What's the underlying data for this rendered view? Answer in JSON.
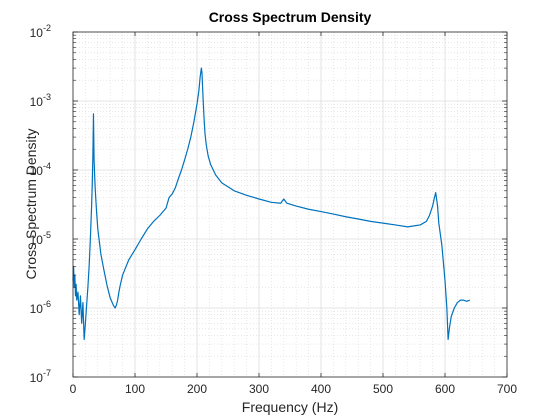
{
  "chart_data": {
    "type": "line",
    "title": "Cross Spectrum Density",
    "xlabel": "Frequency (Hz)",
    "ylabel": "Cross Spectrum Density",
    "xlim": [
      0,
      700
    ],
    "ylim": [
      1e-07,
      0.01
    ],
    "yscale": "log",
    "grid": "on (major and minor)",
    "x_ticks": [
      "0",
      "100",
      "200",
      "300",
      "400",
      "500",
      "600",
      "700"
    ],
    "y_ticks": [
      {
        "base": "10",
        "exp": "-7"
      },
      {
        "base": "10",
        "exp": "-6"
      },
      {
        "base": "10",
        "exp": "-5"
      },
      {
        "base": "10",
        "exp": "-4"
      },
      {
        "base": "10",
        "exp": "-3"
      },
      {
        "base": "10",
        "exp": "-2"
      }
    ],
    "series": [
      {
        "color": "#0072BD",
        "x": [
          0,
          1,
          2,
          3,
          4,
          5,
          6,
          8,
          10,
          12,
          14,
          16,
          18,
          20,
          22,
          24,
          26,
          28,
          30,
          31,
          32,
          32.5,
          33,
          33.5,
          34,
          35,
          36,
          38,
          40,
          45,
          50,
          55,
          60,
          65,
          68,
          70,
          72,
          74,
          76,
          80,
          90,
          100,
          110,
          120,
          130,
          140,
          150,
          155,
          160,
          165,
          170,
          175,
          180,
          185,
          190,
          195,
          200,
          203,
          205,
          207,
          208,
          209,
          210,
          211,
          212,
          213,
          215,
          218,
          222,
          230,
          240,
          260,
          280,
          300,
          320,
          335,
          340,
          345,
          360,
          380,
          400,
          420,
          440,
          460,
          480,
          500,
          520,
          540,
          550,
          560,
          570,
          575,
          580,
          583,
          585,
          588,
          590,
          595,
          600,
          603,
          605,
          607,
          610,
          615,
          620,
          625,
          630,
          635,
          640
        ],
        "y": [
          2.5e-06,
          4e-06,
          2e-06,
          3e-06,
          1.5e-06,
          2.2e-06,
          1.3e-06,
          1.7e-06,
          8e-07,
          1.5e-06,
          6e-07,
          1.2e-06,
          3.5e-07,
          6e-07,
          1.1e-06,
          2e-06,
          4e-06,
          1e-05,
          3e-05,
          6e-05,
          0.00015,
          0.0003,
          0.00065,
          0.0003,
          0.00014,
          8e-05,
          5e-05,
          2.5e-05,
          1.4e-05,
          6e-06,
          3.5e-06,
          2.1e-06,
          1.4e-06,
          1.1e-06,
          1e-06,
          1.1e-06,
          1.3e-06,
          1.7e-06,
          2.1e-06,
          3e-06,
          5e-06,
          7e-06,
          1e-05,
          1.4e-05,
          1.8e-05,
          2.2e-05,
          2.8e-05,
          4e-05,
          4.5e-05,
          5.5e-05,
          7.5e-05,
          0.0001,
          0.00014,
          0.0002,
          0.0003,
          0.0005,
          0.0009,
          0.0014,
          0.0022,
          0.003,
          0.0026,
          0.0016,
          0.001,
          0.00065,
          0.00045,
          0.00033,
          0.00023,
          0.00016,
          0.00012,
          8.5e-05,
          6.5e-05,
          5e-05,
          4.3e-05,
          3.8e-05,
          3.4e-05,
          3.3e-05,
          3.8e-05,
          3.3e-05,
          3e-05,
          2.7e-05,
          2.5e-05,
          2.3e-05,
          2.1e-05,
          1.95e-05,
          1.8e-05,
          1.7e-05,
          1.6e-05,
          1.5e-05,
          1.55e-05,
          1.6e-05,
          1.8e-05,
          2.2e-05,
          3e-05,
          4e-05,
          4.7e-05,
          3e-05,
          1.7e-05,
          8e-06,
          2.5e-06,
          1e-06,
          3.5e-07,
          5e-07,
          7.5e-07,
          1e-06,
          1.2e-06,
          1.3e-06,
          1.3e-06,
          1.25e-06,
          1.3e-06
        ]
      }
    ]
  }
}
